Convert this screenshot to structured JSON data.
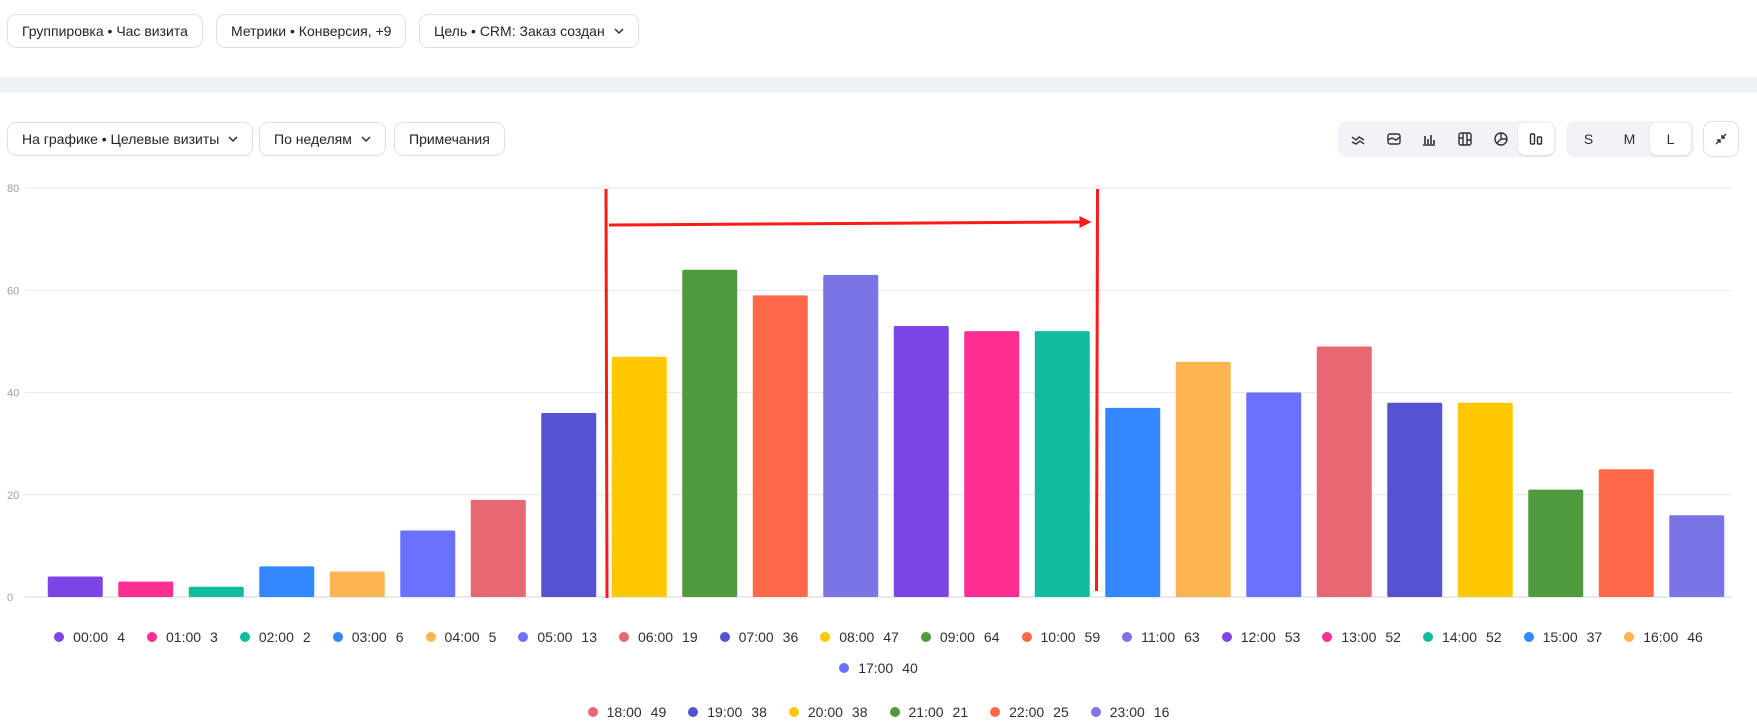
{
  "filters": {
    "grouping": "Группировка • Час визита",
    "metrics": "Метрики • Конверсия, +9",
    "goal": "Цель • CRM: Заказ создан"
  },
  "toolbar": {
    "on_chart": "На графике • Целевые визиты",
    "period": "По неделям",
    "notes": "Примечания",
    "chart_types": [
      "line-chart-icon",
      "area-chart-icon",
      "bar-chart-icon",
      "stacked-bar-icon",
      "pie-chart-icon",
      "column-chart-icon"
    ],
    "active_chart_type": "column-chart-icon",
    "sizes": [
      "S",
      "M",
      "L"
    ],
    "active_size": "L"
  },
  "chart_data": {
    "type": "bar",
    "categories": [
      "00:00",
      "01:00",
      "02:00",
      "03:00",
      "04:00",
      "05:00",
      "06:00",
      "07:00",
      "08:00",
      "09:00",
      "10:00",
      "11:00",
      "12:00",
      "13:00",
      "14:00",
      "15:00",
      "16:00",
      "17:00",
      "18:00",
      "19:00",
      "20:00",
      "21:00",
      "22:00",
      "23:00"
    ],
    "values": [
      4,
      3,
      2,
      6,
      5,
      13,
      19,
      36,
      47,
      64,
      59,
      63,
      53,
      52,
      52,
      37,
      46,
      40,
      49,
      38,
      38,
      21,
      25,
      16
    ],
    "colors": [
      "#7b46e5",
      "#ff2e93",
      "#11bc9e",
      "#3288ff",
      "#ffb54f",
      "#6a71ff",
      "#e56873",
      "#5553cf",
      "#ffc800",
      "#4e9a3d",
      "#ff6849",
      "#7a74e6",
      "#7b46e5",
      "#ff2e93",
      "#11bc9e",
      "#3288ff",
      "#ffb54f",
      "#6a71ff",
      "#e56873",
      "#5553cf",
      "#ffc800",
      "#4e9a3d",
      "#ff6849",
      "#7a74e6"
    ],
    "ylim": [
      0,
      80
    ],
    "yticks": [
      "0",
      "20",
      "40",
      "60",
      "80"
    ],
    "grid": true,
    "legend_position": "bottom",
    "annotation": {
      "type": "highlighted-range-arrow",
      "color": "#ff1a1a",
      "from_category": "08:00",
      "to_category": "14:00"
    }
  }
}
